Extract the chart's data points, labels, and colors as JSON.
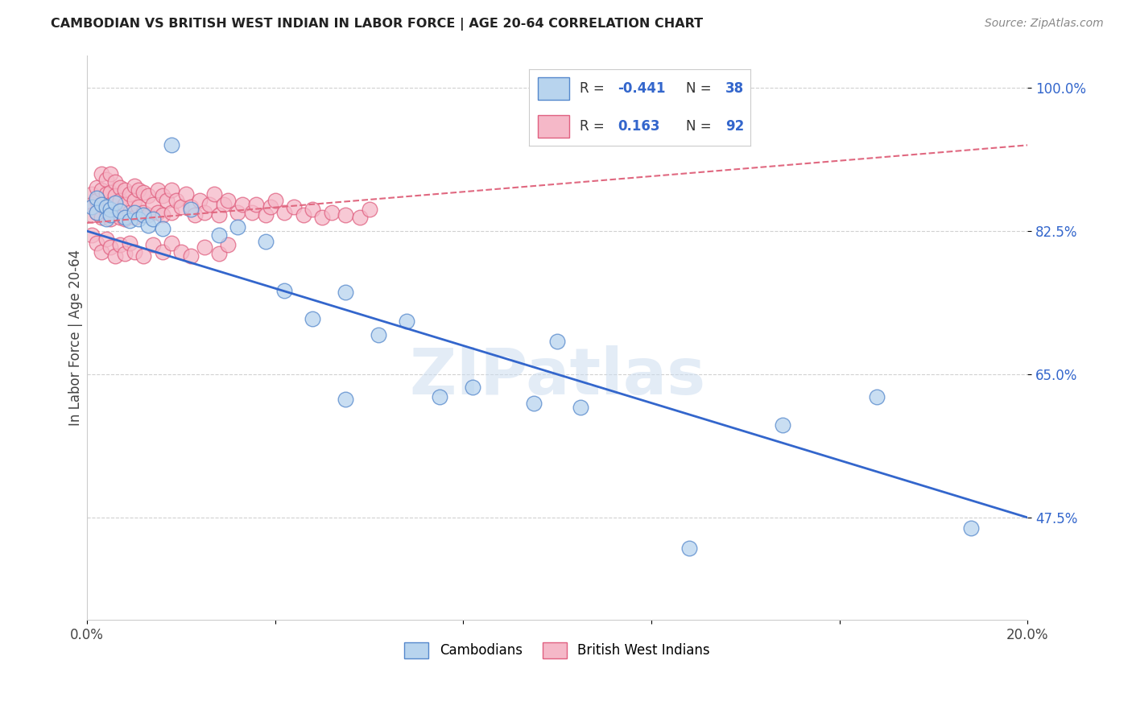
{
  "title": "CAMBODIAN VS BRITISH WEST INDIAN IN LABOR FORCE | AGE 20-64 CORRELATION CHART",
  "source": "Source: ZipAtlas.com",
  "ylabel": "In Labor Force | Age 20-64",
  "x_min": 0.0,
  "x_max": 0.2,
  "y_min": 0.35,
  "y_max": 1.04,
  "y_ticks": [
    0.475,
    0.65,
    0.825,
    1.0
  ],
  "y_tick_labels": [
    "47.5%",
    "65.0%",
    "82.5%",
    "100.0%"
  ],
  "x_ticks": [
    0.0,
    0.04,
    0.08,
    0.12,
    0.16,
    0.2
  ],
  "x_tick_labels": [
    "0.0%",
    "",
    "",
    "",
    "",
    "20.0%"
  ],
  "cambodian_color": "#b8d4ee",
  "bwi_color": "#f5b8c8",
  "cambodian_edge": "#5588cc",
  "bwi_edge": "#e06080",
  "blue_line_color": "#3366cc",
  "pink_line_color": "#e06880",
  "R_cambodian": -0.441,
  "N_cambodian": 38,
  "R_bwi": 0.163,
  "N_bwi": 92,
  "legend_cambodians": "Cambodians",
  "legend_bwi": "British West Indians",
  "blue_line_y0": 0.825,
  "blue_line_y1": 0.475,
  "pink_line_y0": 0.835,
  "pink_line_y1": 0.93,
  "cambodian_x": [
    0.001,
    0.002,
    0.002,
    0.003,
    0.004,
    0.004,
    0.005,
    0.005,
    0.006,
    0.007,
    0.008,
    0.009,
    0.01,
    0.011,
    0.012,
    0.013,
    0.014,
    0.016,
    0.018,
    0.022,
    0.028,
    0.032,
    0.038,
    0.042,
    0.048,
    0.055,
    0.062,
    0.068,
    0.075,
    0.082,
    0.095,
    0.105,
    0.128,
    0.148,
    0.168,
    0.188,
    0.055,
    0.1
  ],
  "cambodian_y": [
    0.855,
    0.865,
    0.848,
    0.858,
    0.855,
    0.84,
    0.852,
    0.845,
    0.86,
    0.85,
    0.842,
    0.838,
    0.848,
    0.84,
    0.845,
    0.832,
    0.84,
    0.828,
    0.93,
    0.852,
    0.82,
    0.83,
    0.812,
    0.752,
    0.718,
    0.75,
    0.698,
    0.715,
    0.622,
    0.634,
    0.615,
    0.61,
    0.438,
    0.588,
    0.622,
    0.462,
    0.62,
    0.69
  ],
  "bwi_x": [
    0.001,
    0.001,
    0.001,
    0.002,
    0.002,
    0.002,
    0.003,
    0.003,
    0.003,
    0.003,
    0.004,
    0.004,
    0.004,
    0.005,
    0.005,
    0.005,
    0.005,
    0.006,
    0.006,
    0.006,
    0.007,
    0.007,
    0.007,
    0.008,
    0.008,
    0.008,
    0.009,
    0.009,
    0.01,
    0.01,
    0.01,
    0.011,
    0.011,
    0.012,
    0.012,
    0.013,
    0.013,
    0.014,
    0.015,
    0.015,
    0.016,
    0.016,
    0.017,
    0.018,
    0.018,
    0.019,
    0.02,
    0.021,
    0.022,
    0.023,
    0.024,
    0.025,
    0.026,
    0.027,
    0.028,
    0.029,
    0.03,
    0.032,
    0.033,
    0.035,
    0.036,
    0.038,
    0.039,
    0.04,
    0.042,
    0.044,
    0.046,
    0.048,
    0.05,
    0.052,
    0.055,
    0.058,
    0.06,
    0.001,
    0.002,
    0.003,
    0.004,
    0.005,
    0.006,
    0.007,
    0.008,
    0.009,
    0.01,
    0.012,
    0.014,
    0.016,
    0.018,
    0.02,
    0.022,
    0.025,
    0.028,
    0.03
  ],
  "bwi_y": [
    0.87,
    0.858,
    0.845,
    0.878,
    0.862,
    0.848,
    0.895,
    0.875,
    0.858,
    0.842,
    0.888,
    0.87,
    0.85,
    0.895,
    0.872,
    0.858,
    0.84,
    0.885,
    0.868,
    0.848,
    0.878,
    0.862,
    0.842,
    0.875,
    0.858,
    0.84,
    0.87,
    0.848,
    0.88,
    0.862,
    0.842,
    0.875,
    0.855,
    0.872,
    0.848,
    0.868,
    0.845,
    0.858,
    0.875,
    0.848,
    0.868,
    0.845,
    0.862,
    0.875,
    0.848,
    0.862,
    0.855,
    0.87,
    0.855,
    0.845,
    0.862,
    0.848,
    0.858,
    0.87,
    0.845,
    0.858,
    0.862,
    0.848,
    0.858,
    0.848,
    0.858,
    0.845,
    0.855,
    0.862,
    0.848,
    0.855,
    0.845,
    0.852,
    0.842,
    0.848,
    0.845,
    0.842,
    0.852,
    0.82,
    0.81,
    0.8,
    0.815,
    0.805,
    0.795,
    0.808,
    0.798,
    0.81,
    0.8,
    0.795,
    0.808,
    0.8,
    0.81,
    0.8,
    0.795,
    0.805,
    0.798,
    0.808
  ]
}
